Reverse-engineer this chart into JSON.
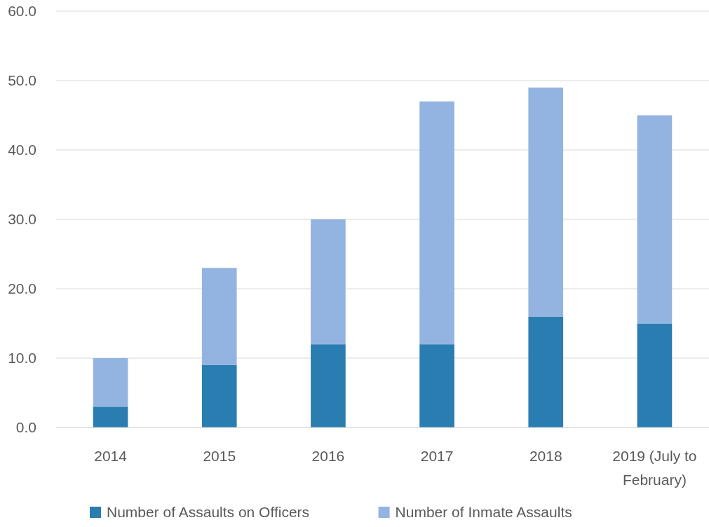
{
  "chart_data": {
    "type": "bar",
    "stacked": true,
    "categories": [
      "2014",
      "2015",
      "2016",
      "2017",
      "2018",
      "2019 (July to February)"
    ],
    "series": [
      {
        "name": "Number of Assaults on Officers",
        "color": "#2a7db0",
        "values": [
          3,
          9,
          12,
          12,
          16,
          15
        ]
      },
      {
        "name": "Number of Inmate Assaults",
        "color": "#93b4e0",
        "values": [
          7,
          14,
          18,
          35,
          33,
          30
        ]
      }
    ],
    "ylim": [
      0,
      60
    ],
    "yticks": [
      {
        "value": 0,
        "label": "0.0"
      },
      {
        "value": 10,
        "label": "10.0"
      },
      {
        "value": 20,
        "label": "20.0"
      },
      {
        "value": 30,
        "label": "30.0"
      },
      {
        "value": 40,
        "label": "40.0"
      },
      {
        "value": 50,
        "label": "50.0"
      },
      {
        "value": 60,
        "label": "60.0"
      }
    ],
    "grid": "y",
    "legend": "bottom"
  }
}
